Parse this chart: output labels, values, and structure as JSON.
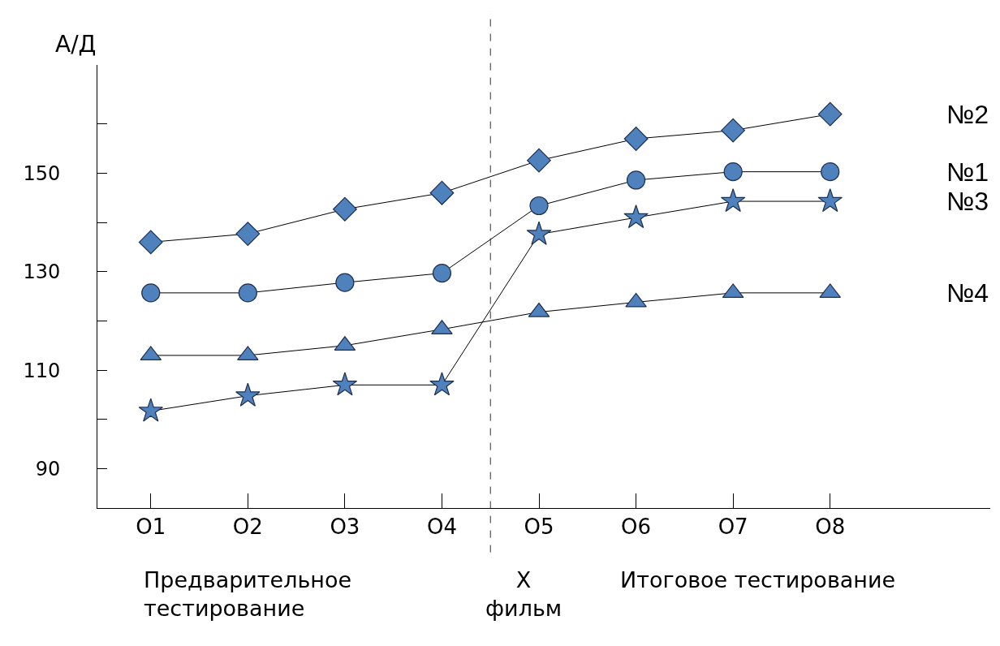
{
  "chart_data": {
    "type": "line",
    "ylabel": "А/Д",
    "categories": [
      "O1",
      "O2",
      "O3",
      "O4",
      "O5",
      "O6",
      "O7",
      "O8"
    ],
    "ylim": [
      82,
      172
    ],
    "yticks": [
      90,
      {
        "value": 100,
        "label": null
      },
      110,
      {
        "value": 120,
        "label": null
      },
      130,
      {
        "value": 140,
        "label": null
      },
      150,
      {
        "value": 160,
        "label": null
      }
    ],
    "series": [
      {
        "name": "№2",
        "color": "#4f81bd",
        "marker": "diamond",
        "values": [
          136,
          137.7,
          142.7,
          146,
          152.6,
          157,
          158.7,
          162
        ]
      },
      {
        "name": "№1",
        "color": "#4f81bd",
        "marker": "circle",
        "values": [
          125.7,
          125.7,
          127.8,
          129.7,
          143.4,
          148.6,
          150.3,
          150.3
        ]
      },
      {
        "name": "№3",
        "color": "#4f81bd",
        "marker": "star",
        "values": [
          101.7,
          104.8,
          107,
          107,
          137.6,
          141,
          144.3,
          144.3
        ]
      },
      {
        "name": "№4",
        "color": "#4f81bd",
        "marker": "triangle",
        "values": [
          113,
          113,
          115,
          118.3,
          121.8,
          123.8,
          125.7,
          125.7
        ]
      }
    ],
    "annotations": [
      "Предварительное тестирование",
      "X фильм",
      "Итоговое тестирование"
    ],
    "grid": false,
    "legend": false,
    "line_style": "solid"
  }
}
